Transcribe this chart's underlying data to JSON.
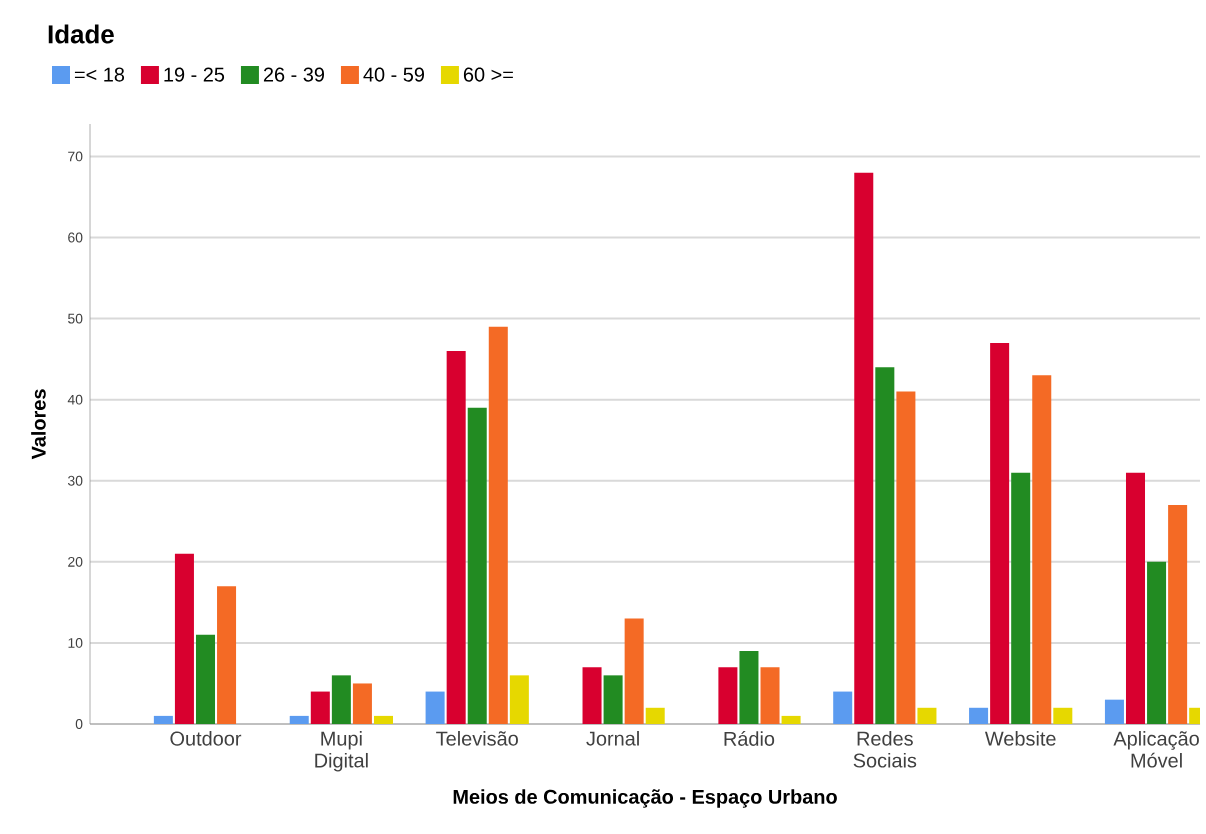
{
  "chart_data": {
    "type": "bar",
    "xlabel": "Meios de Comunicação - Espaço Urbano",
    "ylabel": "Valores",
    "legend_title": "Idade",
    "categories": [
      "Outdoor",
      "Mupi Digital",
      "Televisão",
      "Jornal",
      "Rádio",
      "Redes Sociais",
      "Website",
      "Aplicação Móvel"
    ],
    "series": [
      {
        "name": "=< 18",
        "color": "#5b9bf0",
        "values": [
          1,
          1,
          4,
          0,
          0,
          4,
          2,
          3
        ]
      },
      {
        "name": "19 - 25",
        "color": "#d8002f",
        "values": [
          21,
          4,
          46,
          7,
          7,
          68,
          47,
          31
        ]
      },
      {
        "name": "26 - 39",
        "color": "#228b22",
        "values": [
          11,
          6,
          39,
          6,
          9,
          44,
          31,
          20
        ]
      },
      {
        "name": "40 - 59",
        "color": "#f46a25",
        "values": [
          17,
          5,
          49,
          13,
          7,
          41,
          43,
          27
        ]
      },
      {
        "name": "60 >=",
        "color": "#e6d800",
        "values": [
          0,
          1,
          6,
          2,
          1,
          2,
          2,
          2
        ]
      }
    ],
    "ylim": [
      0,
      74
    ],
    "yticks": [
      0,
      10,
      20,
      30,
      40,
      50,
      60,
      70
    ],
    "grid": "y",
    "legend": "top left"
  }
}
